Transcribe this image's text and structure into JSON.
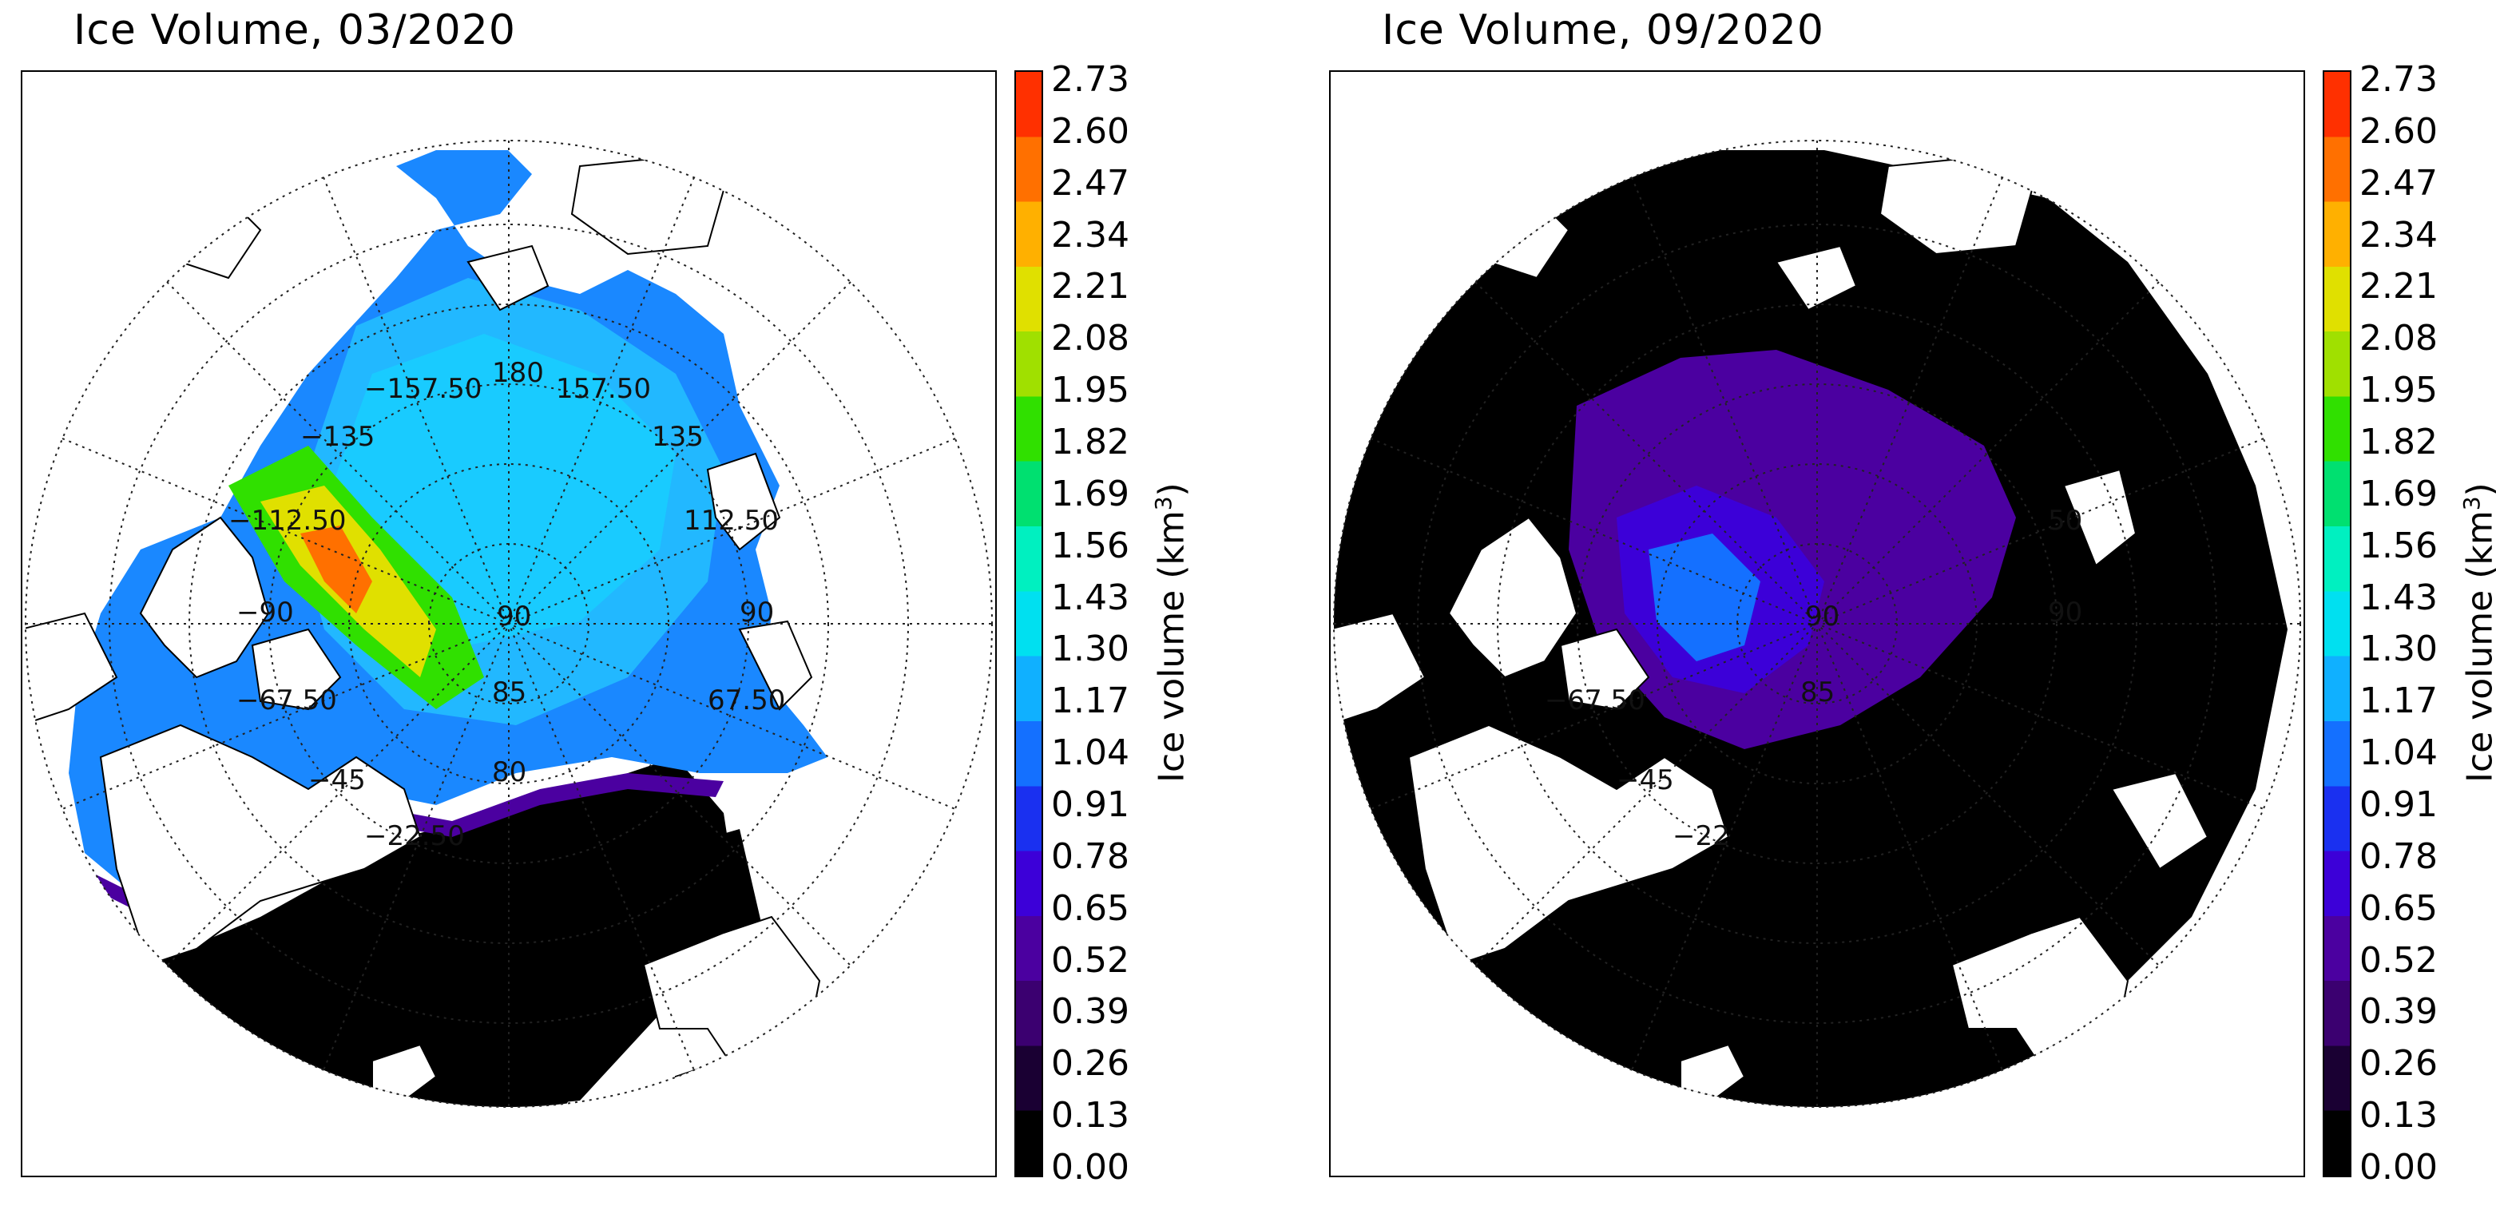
{
  "maps": [
    {
      "id": "left",
      "title": "Ice Volume, 03/2020",
      "month": "03/2020",
      "colorbar_label": "Ice volume (km",
      "colorbar_label_sup": "3",
      "colorbar_label_end": ")",
      "grid_labels": [
        "180",
        "−157.50",
        "157.50",
        "−135",
        "135",
        "−112.50",
        "112.50",
        "−90",
        "90",
        "−67.50",
        "67.50",
        "−45",
        "−22.50",
        "85",
        "80",
        "90"
      ]
    },
    {
      "id": "right",
      "title": "Ice Volume, 09/2020",
      "month": "09/2020",
      "colorbar_label": "Ice volume (km",
      "colorbar_label_sup": "3",
      "colorbar_label_end": ")",
      "grid_labels": [
        "−67.50",
        "−45",
        "−22",
        "85",
        "90",
        "90",
        "50"
      ]
    }
  ],
  "colorbar": {
    "ticks": [
      "2.73",
      "2.60",
      "2.47",
      "2.34",
      "2.21",
      "2.08",
      "1.95",
      "1.82",
      "1.69",
      "1.56",
      "1.43",
      "1.30",
      "1.17",
      "1.04",
      "0.91",
      "0.78",
      "0.65",
      "0.52",
      "0.39",
      "0.26",
      "0.13",
      "0.00"
    ],
    "min": 0.0,
    "max": 2.73,
    "colors": [
      "#000000",
      "#1a0033",
      "#3b0070",
      "#4b00a0",
      "#3c00d8",
      "#1a30f0",
      "#1470ff",
      "#10b0ff",
      "#00e0f0",
      "#00f0c0",
      "#00e070",
      "#30e000",
      "#a0e000",
      "#e0e000",
      "#ffb000",
      "#ff7000",
      "#ff3000"
    ]
  }
}
